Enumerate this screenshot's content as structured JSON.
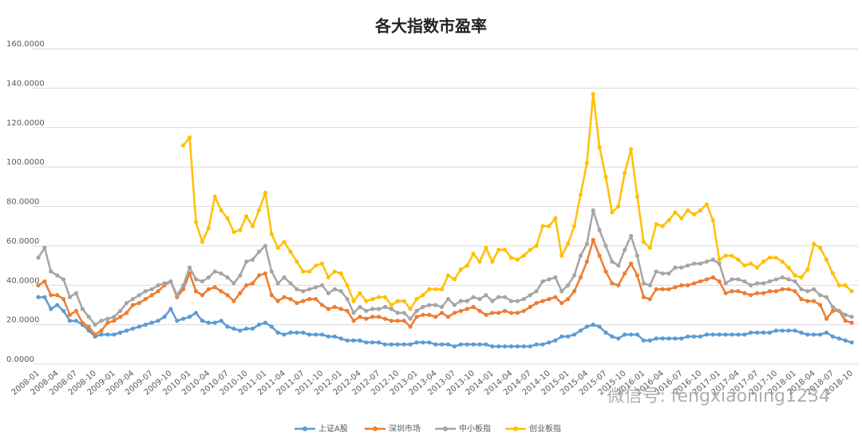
{
  "chart_data": {
    "type": "line",
    "title": "各大指数市盈率",
    "watermark": "微信号: fengxiaoning1234",
    "categories": [
      "2008-01",
      null,
      null,
      "2008-04",
      null,
      null,
      "2008-07",
      null,
      null,
      "2008-10",
      null,
      null,
      "2009-01",
      null,
      null,
      "2009-04",
      null,
      null,
      "2009-07",
      null,
      null,
      "2009-10",
      null,
      null,
      "2010-01",
      null,
      null,
      "2010-04",
      null,
      null,
      "2010-07",
      null,
      null,
      "2010-10",
      null,
      null,
      "2011-01",
      null,
      null,
      "2011-04",
      null,
      null,
      "2011-07",
      null,
      null,
      "2011-10",
      null,
      null,
      "2012-01",
      null,
      null,
      "2012-04",
      null,
      null,
      "2012-07",
      null,
      null,
      "2012-10",
      null,
      null,
      "2013-01",
      null,
      null,
      "2013-04",
      null,
      null,
      "2013-07",
      null,
      null,
      "2013-10",
      null,
      null,
      "2014-01",
      null,
      null,
      "2014-04",
      null,
      null,
      "2014-07",
      null,
      null,
      "2014-10",
      null,
      null,
      "2015-01",
      null,
      null,
      "2015-04",
      null,
      null,
      "2015-07",
      null,
      null,
      "2015-10",
      null,
      null,
      "2016-01",
      null,
      null,
      "2016-04",
      null,
      null,
      "2016-07",
      null,
      null,
      "2016-10",
      null,
      null,
      "2017-01",
      null,
      null,
      "2017-04",
      null,
      null,
      "2017-07",
      null,
      null,
      "2017-10",
      null,
      null,
      "2018-01",
      null,
      null,
      "2018-04",
      null,
      null,
      "2018-07",
      null,
      null,
      "2018-10"
    ],
    "series": [
      {
        "name": "上证A股",
        "color": "#5b9bd5",
        "values": [
          34,
          34,
          28,
          30,
          27,
          22,
          22,
          20,
          17,
          14,
          15,
          15,
          15,
          16,
          17,
          18,
          19,
          20,
          21,
          22,
          24,
          28,
          22,
          23,
          24,
          26,
          22,
          21,
          21,
          22,
          19,
          18,
          17,
          18,
          18,
          20,
          21,
          19,
          16,
          15,
          16,
          16,
          16,
          15,
          15,
          15,
          14,
          14,
          13,
          12,
          12,
          12,
          11,
          11,
          11,
          10,
          10,
          10,
          10,
          10,
          11,
          11,
          11,
          10,
          10,
          10,
          9,
          10,
          10,
          10,
          10,
          10,
          9,
          9,
          9,
          9,
          9,
          9,
          9,
          10,
          10,
          11,
          12,
          14,
          14,
          15,
          17,
          19,
          20,
          19,
          16,
          14,
          13,
          15,
          15,
          15,
          12,
          12,
          13,
          13,
          13,
          13,
          13,
          14,
          14,
          14,
          15,
          15,
          15,
          15,
          15,
          15,
          15,
          16,
          16,
          16,
          16,
          17,
          17,
          17,
          17,
          16,
          15,
          15,
          15,
          16,
          14,
          13,
          12,
          11
        ]
      },
      {
        "name": "深圳市场",
        "color": "#ed7d31",
        "values": [
          40,
          42,
          35,
          35,
          33,
          25,
          27,
          21,
          19,
          15,
          17,
          21,
          22,
          24,
          26,
          30,
          31,
          33,
          35,
          37,
          40,
          42,
          34,
          38,
          46,
          37,
          35,
          38,
          39,
          37,
          35,
          32,
          36,
          40,
          41,
          45,
          46,
          35,
          32,
          34,
          33,
          31,
          32,
          33,
          33,
          30,
          28,
          29,
          28,
          27,
          22,
          24,
          23,
          24,
          24,
          23,
          22,
          22,
          22,
          19,
          24,
          25,
          25,
          24,
          26,
          24,
          26,
          27,
          28,
          29,
          27,
          25,
          26,
          26,
          27,
          26,
          26,
          27,
          29,
          31,
          32,
          33,
          34,
          31,
          33,
          37,
          44,
          52,
          63,
          55,
          47,
          41,
          40,
          46,
          51,
          45,
          34,
          33,
          38,
          38,
          38,
          39,
          40,
          40,
          41,
          42,
          43,
          44,
          42,
          36,
          37,
          37,
          36,
          35,
          36,
          36,
          37,
          37,
          38,
          38,
          37,
          33,
          32,
          32,
          30,
          23,
          27,
          27,
          22,
          21
        ]
      },
      {
        "name": "中小板指",
        "color": "#a5a5a5",
        "values": [
          54,
          59,
          47,
          45,
          43,
          34,
          36,
          28,
          24,
          20,
          22,
          23,
          24,
          27,
          31,
          33,
          35,
          37,
          38,
          40,
          41,
          42,
          35,
          40,
          49,
          43,
          42,
          44,
          47,
          46,
          44,
          41,
          45,
          52,
          53,
          57,
          60,
          47,
          41,
          44,
          41,
          38,
          37,
          38,
          39,
          40,
          36,
          38,
          37,
          33,
          26,
          29,
          27,
          28,
          28,
          29,
          28,
          26,
          26,
          23,
          27,
          29,
          30,
          30,
          29,
          33,
          30,
          32,
          32,
          34,
          33,
          35,
          32,
          34,
          34,
          32,
          32,
          33,
          35,
          37,
          42,
          43,
          44,
          37,
          40,
          45,
          55,
          61,
          78,
          68,
          60,
          52,
          50,
          58,
          65,
          55,
          41,
          40,
          47,
          46,
          46,
          49,
          49,
          50,
          51,
          51,
          52,
          53,
          51,
          41,
          43,
          43,
          42,
          40,
          41,
          41,
          42,
          43,
          44,
          43,
          42,
          38,
          37,
          38,
          35,
          34,
          29,
          27,
          25,
          24
        ]
      },
      {
        "name": "创业板指",
        "color": "#ffc000",
        "values": [
          null,
          null,
          null,
          null,
          null,
          null,
          null,
          null,
          null,
          null,
          null,
          null,
          null,
          null,
          null,
          null,
          null,
          null,
          null,
          null,
          null,
          null,
          null,
          111,
          115,
          72,
          62,
          69,
          85,
          78,
          74,
          67,
          68,
          75,
          70,
          78,
          87,
          66,
          59,
          62,
          57,
          52,
          47,
          47,
          50,
          51,
          44,
          47,
          46,
          40,
          32,
          36,
          32,
          33,
          34,
          34,
          30,
          32,
          32,
          28,
          33,
          35,
          38,
          38,
          38,
          45,
          43,
          48,
          50,
          56,
          52,
          59,
          52,
          58,
          58,
          54,
          53,
          55,
          58,
          60,
          70,
          70,
          74,
          55,
          61,
          70,
          86,
          102,
          137,
          110,
          95,
          77,
          80,
          97,
          109,
          85,
          62,
          59,
          71,
          70,
          73,
          77,
          74,
          78,
          76,
          78,
          81,
          73,
          53,
          55,
          55,
          53,
          50,
          51,
          49,
          52,
          54,
          54,
          52,
          49,
          45,
          44,
          48,
          61,
          59,
          53,
          46,
          40,
          40,
          37
        ]
      }
    ],
    "ylim": [
      0,
      160
    ],
    "yticks": [
      {
        "value": 0,
        "label": "0.0000"
      },
      {
        "value": 20,
        "label": "20.0000"
      },
      {
        "value": 40,
        "label": "40.0000"
      },
      {
        "value": 60,
        "label": "60.0000"
      },
      {
        "value": 80,
        "label": "80.0000"
      },
      {
        "value": 100,
        "label": "100.0000"
      },
      {
        "value": 120,
        "label": "120.0000"
      },
      {
        "value": 140,
        "label": "140.0000"
      },
      {
        "value": 160,
        "label": "160.0000"
      }
    ],
    "grid": true,
    "legend": "bottom"
  }
}
